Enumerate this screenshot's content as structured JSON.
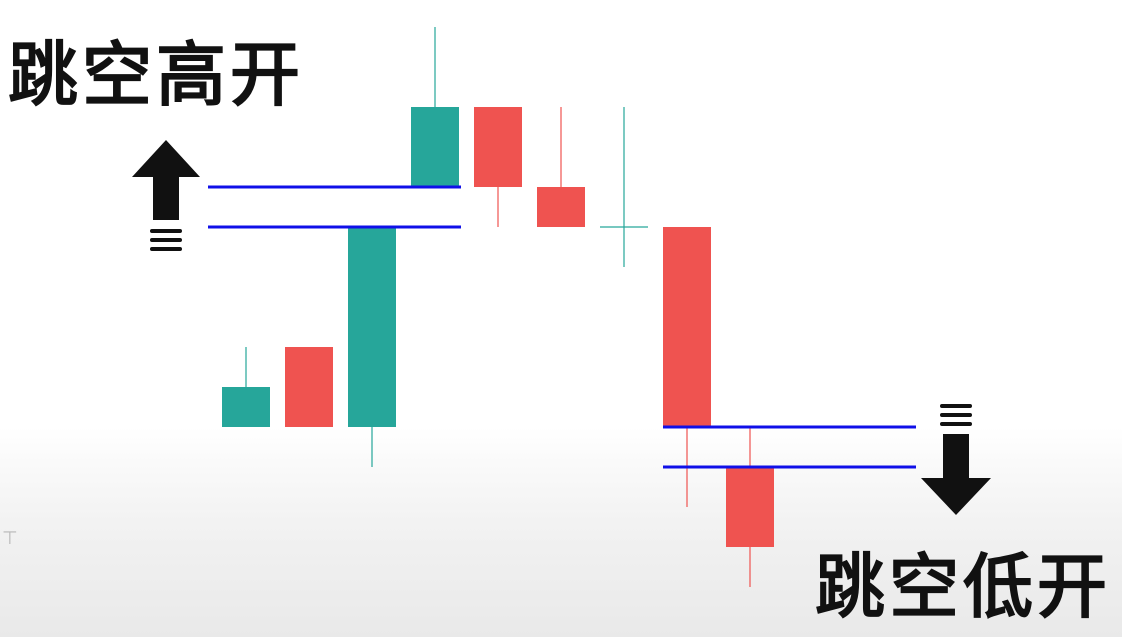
{
  "labels": {
    "gap_up": "跳空高开",
    "gap_down": "跳空低开"
  },
  "colors": {
    "bull": "#26a69a",
    "bear": "#ef5350",
    "gap_line": "#1010e8",
    "arrow": "#111111",
    "background": "#ffffff"
  },
  "icons": {
    "gap_up_arrow": "arrow-up-icon",
    "gap_down_arrow": "arrow-down-icon"
  },
  "chart_data": {
    "type": "candlestick",
    "candles": [
      {
        "open": 20,
        "close": 30,
        "high": 40,
        "low": 20
      },
      {
        "open": 40,
        "close": 20,
        "high": 40,
        "low": 20
      },
      {
        "open": 20,
        "close": 70,
        "high": 70,
        "low": 10
      },
      {
        "open": 80,
        "close": 100,
        "high": 120,
        "low": 80
      },
      {
        "open": 100,
        "close": 80,
        "high": 100,
        "low": 70
      },
      {
        "open": 80,
        "close": 70,
        "high": 100,
        "low": 70
      },
      {
        "open": 70,
        "close": 70,
        "high": 100,
        "low": 60
      },
      {
        "open": 70,
        "close": 20,
        "high": 70,
        "low": 0
      },
      {
        "open": 10,
        "close": -10,
        "high": 20,
        "low": -20
      }
    ],
    "gap_up_levels": [
      80,
      70
    ],
    "gap_down_levels": [
      20,
      10
    ],
    "ylim": [
      -20,
      120
    ]
  }
}
